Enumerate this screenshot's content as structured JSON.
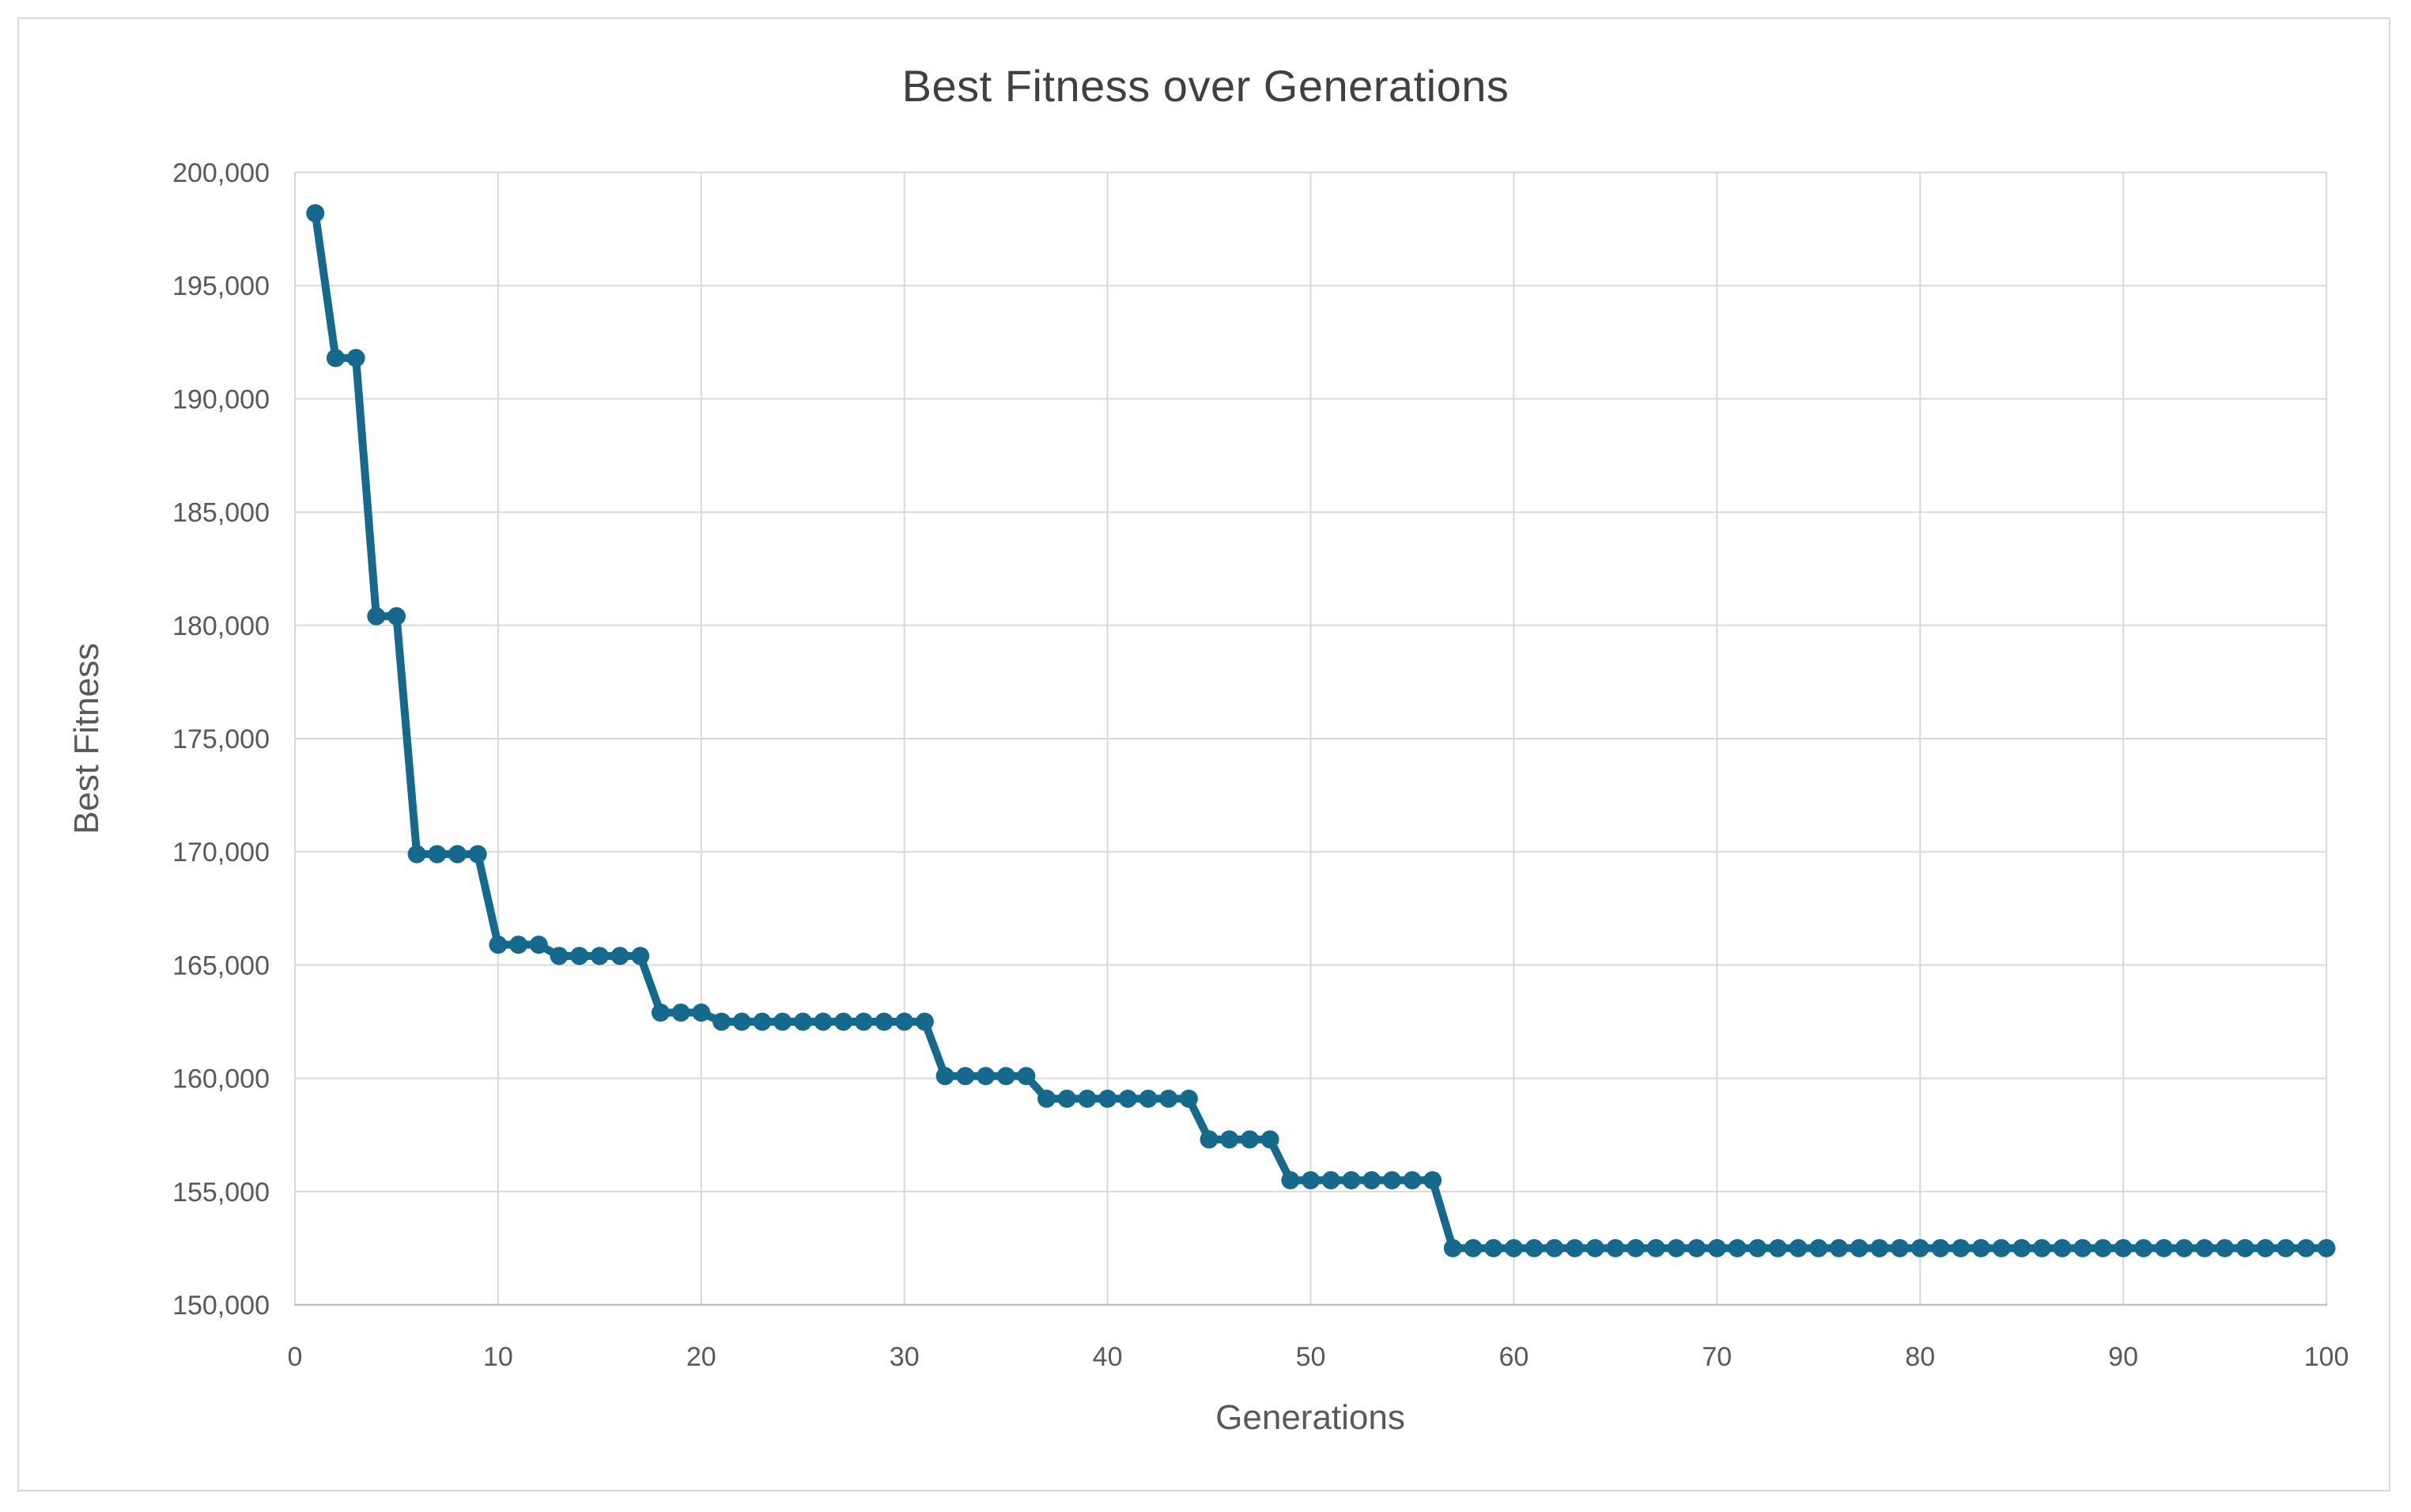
{
  "title": "Best Fitness over Generations",
  "chart_data": {
    "type": "line",
    "title": "Best Fitness over Generations",
    "xlabel": "Generations",
    "ylabel": "Best Fitness",
    "xlim": [
      0,
      100
    ],
    "ylim": [
      150000,
      200000
    ],
    "x_ticks": [
      0,
      10,
      20,
      30,
      40,
      50,
      60,
      70,
      80,
      90,
      100
    ],
    "y_ticks": [
      150000,
      155000,
      160000,
      165000,
      170000,
      175000,
      180000,
      185000,
      190000,
      195000,
      200000
    ],
    "grid": true,
    "legend": "none",
    "series": [
      {
        "name": "Best Fitness",
        "color": "#15698c",
        "marker": "circle",
        "x": [
          1,
          2,
          3,
          4,
          5,
          6,
          7,
          8,
          9,
          10,
          11,
          12,
          13,
          14,
          15,
          16,
          17,
          18,
          19,
          20,
          21,
          22,
          23,
          24,
          25,
          26,
          27,
          28,
          29,
          30,
          31,
          32,
          33,
          34,
          35,
          36,
          37,
          38,
          39,
          40,
          41,
          42,
          43,
          44,
          45,
          46,
          47,
          48,
          49,
          50,
          51,
          52,
          53,
          54,
          55,
          56,
          57,
          58,
          59,
          60,
          61,
          62,
          63,
          64,
          65,
          66,
          67,
          68,
          69,
          70,
          71,
          72,
          73,
          74,
          75,
          76,
          77,
          78,
          79,
          80,
          81,
          82,
          83,
          84,
          85,
          86,
          87,
          88,
          89,
          90,
          91,
          92,
          93,
          94,
          95,
          96,
          97,
          98,
          99,
          100
        ],
        "y": [
          198200,
          191800,
          191800,
          180400,
          180400,
          169900,
          169900,
          169900,
          169900,
          165900,
          165900,
          165900,
          165400,
          165400,
          165400,
          165400,
          165400,
          162900,
          162900,
          162900,
          162500,
          162500,
          162500,
          162500,
          162500,
          162500,
          162500,
          162500,
          162500,
          162500,
          162500,
          160100,
          160100,
          160100,
          160100,
          160100,
          159100,
          159100,
          159100,
          159100,
          159100,
          159100,
          159100,
          159100,
          157300,
          157300,
          157300,
          157300,
          155500,
          155500,
          155500,
          155500,
          155500,
          155500,
          155500,
          155500,
          152500,
          152500,
          152500,
          152500,
          152500,
          152500,
          152500,
          152500,
          152500,
          152500,
          152500,
          152500,
          152500,
          152500,
          152500,
          152500,
          152500,
          152500,
          152500,
          152500,
          152500,
          152500,
          152500,
          152500,
          152500,
          152500,
          152500,
          152500,
          152500,
          152500,
          152500,
          152500,
          152500,
          152500,
          152500,
          152500,
          152500,
          152500,
          152500,
          152500,
          152500,
          152500,
          152500,
          152500
        ]
      }
    ]
  },
  "colors": {
    "series": "#15698c",
    "gridline": "#d9d9d9",
    "axis_line": "#c3c3c3",
    "title_text": "#404040",
    "axis_text": "#595959",
    "frame_border": "#d9d9d9",
    "background": "#ffffff"
  }
}
